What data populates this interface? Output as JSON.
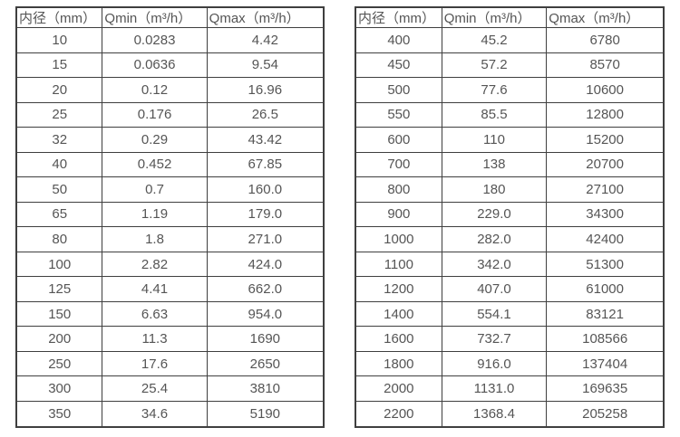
{
  "colors": {
    "background": "#ffffff",
    "border": "#3f3f3f",
    "text": "#555555"
  },
  "headers": [
    "内径（mm）",
    "Qmin（m³/h）",
    "Qmax（m³/h）"
  ],
  "left_table": {
    "rows": [
      [
        "10",
        "0.0283",
        "4.42"
      ],
      [
        "15",
        "0.0636",
        "9.54"
      ],
      [
        "20",
        "0.12",
        "16.96"
      ],
      [
        "25",
        "0.176",
        "26.5"
      ],
      [
        "32",
        "0.29",
        "43.42"
      ],
      [
        "40",
        "0.452",
        "67.85"
      ],
      [
        "50",
        "0.7",
        "160.0"
      ],
      [
        "65",
        "1.19",
        "179.0"
      ],
      [
        "80",
        "1.8",
        "271.0"
      ],
      [
        "100",
        "2.82",
        "424.0"
      ],
      [
        "125",
        "4.41",
        "662.0"
      ],
      [
        "150",
        "6.63",
        "954.0"
      ],
      [
        "200",
        "11.3",
        "1690"
      ],
      [
        "250",
        "17.6",
        "2650"
      ],
      [
        "300",
        "25.4",
        "3810"
      ],
      [
        "350",
        "34.6",
        "5190"
      ]
    ]
  },
  "right_table": {
    "rows": [
      [
        "400",
        "45.2",
        "6780"
      ],
      [
        "450",
        "57.2",
        "8570"
      ],
      [
        "500",
        "77.6",
        "10600"
      ],
      [
        "550",
        "85.5",
        "12800"
      ],
      [
        "600",
        "110",
        "15200"
      ],
      [
        "700",
        "138",
        "20700"
      ],
      [
        "800",
        "180",
        "27100"
      ],
      [
        "900",
        "229.0",
        "34300"
      ],
      [
        "1000",
        "282.0",
        "42400"
      ],
      [
        "1100",
        "342.0",
        "51300"
      ],
      [
        "1200",
        "407.0",
        "61000"
      ],
      [
        "1400",
        "554.1",
        "83121"
      ],
      [
        "1600",
        "732.7",
        "108566"
      ],
      [
        "1800",
        "916.0",
        "137404"
      ],
      [
        "2000",
        "1131.0",
        "169635"
      ],
      [
        "2200",
        "1368.4",
        "205258"
      ]
    ]
  }
}
